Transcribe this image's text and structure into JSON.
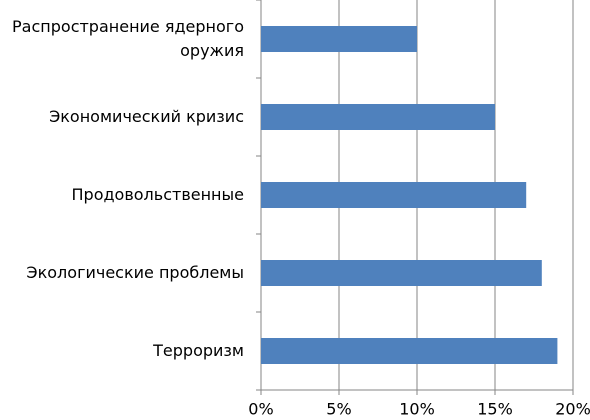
{
  "chart_data": {
    "type": "hbar",
    "categories": [
      "Распространение ядерного оружия",
      "Экономический кризис",
      "Продовольственные",
      "Экологические проблемы",
      "Терроризм"
    ],
    "values": [
      10,
      15,
      17,
      18,
      19
    ],
    "color": "#4f81bd",
    "xlim": [
      0,
      20
    ],
    "xticks": [
      {
        "value": 0,
        "label": "0%"
      },
      {
        "value": 5,
        "label": "5%"
      },
      {
        "value": 10,
        "label": "10%"
      },
      {
        "value": 15,
        "label": "15%"
      },
      {
        "value": 20,
        "label": "20%"
      }
    ],
    "grid": true
  }
}
